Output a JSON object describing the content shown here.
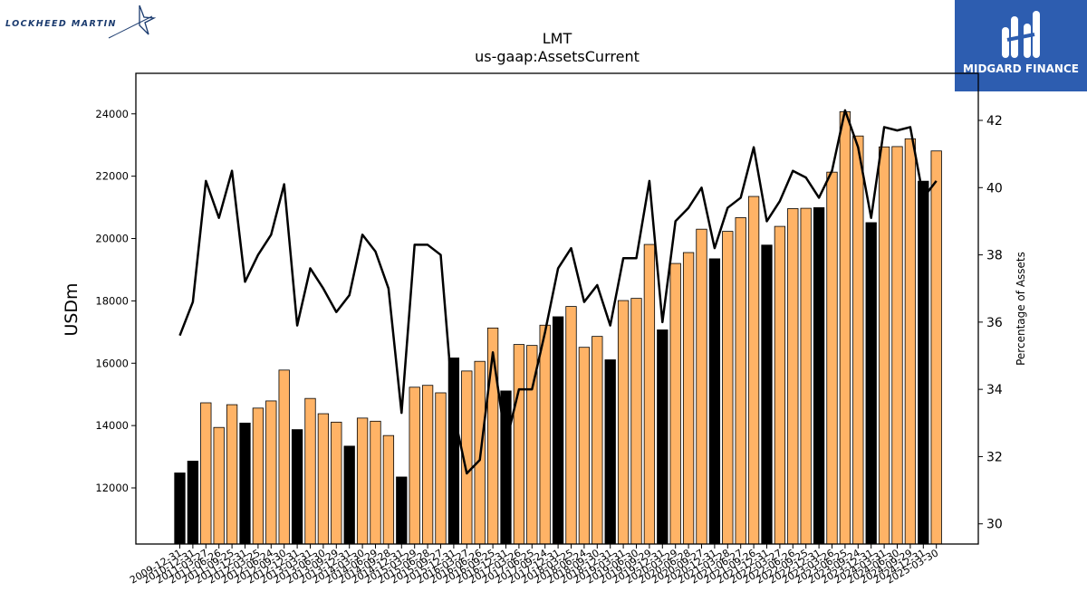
{
  "logos": {
    "left_text": "LOCKHEED MARTIN",
    "right_text": "MIDGARD FINANCE"
  },
  "colors": {
    "bar_default": "#ffb366",
    "bar_highlight": "#000000",
    "line": "#000000",
    "brand_blue": "#2d5db0"
  },
  "chart_data": {
    "type": "bar",
    "title": "LMT",
    "subtitle": "us-gaap:AssetsCurrent",
    "ylabel": "USDm",
    "y2label": "Percentage of Assets",
    "ylim": [
      10200,
      25300
    ],
    "y2lim": [
      29.4,
      43.4
    ],
    "yticks": [
      12000,
      14000,
      16000,
      18000,
      20000,
      22000,
      24000
    ],
    "y2ticks": [
      30,
      32,
      34,
      36,
      38,
      40,
      42
    ],
    "grid": false,
    "legend": "none",
    "categories": [
      "2009-12-31",
      "2010-12-31",
      "2011-03-27",
      "2011-06-26",
      "2011-09-25",
      "2011-12-31",
      "2012-03-25",
      "2012-06-24",
      "2012-09-30",
      "2012-12-31",
      "2013-03-31",
      "2013-06-30",
      "2013-09-29",
      "2013-12-31",
      "2014-03-30",
      "2014-06-29",
      "2014-09-28",
      "2014-12-31",
      "2015-03-29",
      "2015-06-28",
      "2015-09-27",
      "2015-12-31",
      "2016-03-27",
      "2016-06-26",
      "2016-09-25",
      "2016-12-31",
      "2017-03-26",
      "2017-06-25",
      "2017-09-24",
      "2017-12-31",
      "2018-03-25",
      "2018-06-24",
      "2018-09-30",
      "2018-12-31",
      "2019-03-31",
      "2019-06-30",
      "2019-09-29",
      "2019-12-31",
      "2020-03-29",
      "2020-06-28",
      "2020-09-27",
      "2020-12-31",
      "2021-03-28",
      "2021-06-27",
      "2021-09-26",
      "2021-12-31",
      "2022-03-27",
      "2022-06-26",
      "2022-09-25",
      "2022-12-31",
      "2023-03-26",
      "2023-06-25",
      "2023-09-24",
      "2023-12-31",
      "2024-03-31",
      "2024-06-30",
      "2024-09-29",
      "2024-12-31",
      "2025-03-30"
    ],
    "values": [
      12480,
      12860,
      14730,
      13940,
      14670,
      14080,
      14560,
      14790,
      15780,
      13870,
      14870,
      14380,
      14110,
      13340,
      14240,
      14140,
      13680,
      12350,
      15230,
      15290,
      15050,
      16170,
      15750,
      16060,
      17130,
      15110,
      16600,
      16570,
      17220,
      17490,
      17820,
      16510,
      16860,
      16110,
      18010,
      18080,
      19810,
      17070,
      19200,
      19550,
      20300,
      19350,
      20230,
      20670,
      21350,
      19790,
      20390,
      20960,
      20970,
      20990,
      22130,
      24070,
      23290,
      20510,
      22940,
      22950,
      23200,
      21840,
      22810
    ],
    "highlight": [
      true,
      true,
      false,
      false,
      false,
      true,
      false,
      false,
      false,
      true,
      false,
      false,
      false,
      true,
      false,
      false,
      false,
      true,
      false,
      false,
      false,
      true,
      false,
      false,
      false,
      true,
      false,
      false,
      false,
      true,
      false,
      false,
      false,
      true,
      false,
      false,
      false,
      true,
      false,
      false,
      false,
      true,
      false,
      false,
      false,
      true,
      false,
      false,
      false,
      true,
      false,
      false,
      false,
      true,
      false,
      false,
      false,
      true,
      false
    ],
    "series": [
      {
        "axis": "right",
        "type": "line",
        "values": [
          35.6,
          36.6,
          40.2,
          39.1,
          40.5,
          37.2,
          38.0,
          38.6,
          40.1,
          35.9,
          37.6,
          37.0,
          36.3,
          36.8,
          38.6,
          38.1,
          37.0,
          33.3,
          38.3,
          38.3,
          38.0,
          33.3,
          31.5,
          31.9,
          35.1,
          32.4,
          34.0,
          34.0,
          35.7,
          37.6,
          38.2,
          36.6,
          37.1,
          35.9,
          37.9,
          37.9,
          40.2,
          36.0,
          39.0,
          39.4,
          40.0,
          38.2,
          39.4,
          39.7,
          41.2,
          39.0,
          39.6,
          40.5,
          40.3,
          39.7,
          40.5,
          42.3,
          41.2,
          39.1,
          41.8,
          41.7,
          41.8,
          39.7,
          40.2
        ]
      }
    ]
  }
}
